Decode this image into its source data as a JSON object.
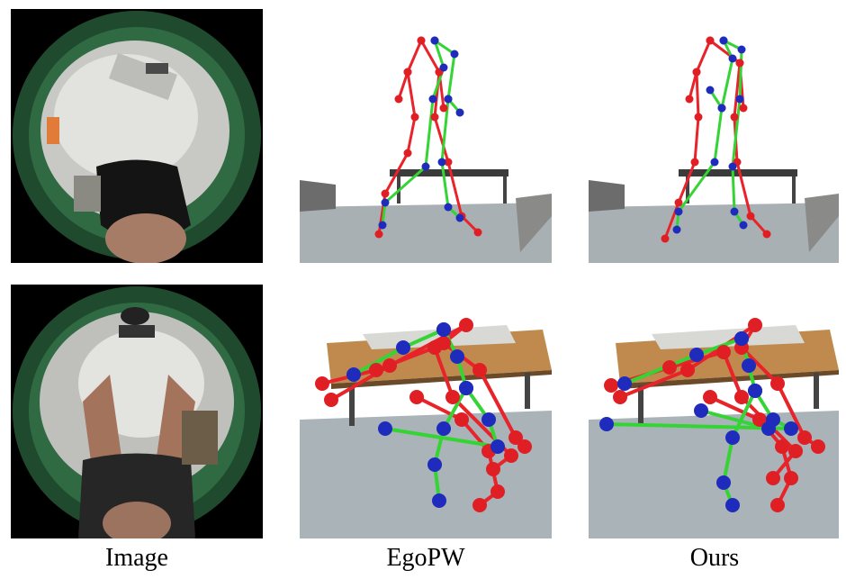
{
  "figure": {
    "columns": [
      "Image",
      "EgoPW",
      "Ours"
    ]
  },
  "legend_colors": {
    "skeleton_a": "#e8232a",
    "skeleton_b": "#35d435",
    "joint_a": "#e01f25",
    "joint_b": "#1f2bbd"
  },
  "rows": [
    {
      "image_panel": "fisheye-egocentric-photo-top-view-walking",
      "egopw_panel": "skeleton-overlay-walking",
      "ours_panel": "skeleton-overlay-walking"
    },
    {
      "image_panel": "fisheye-egocentric-photo-arms-raised",
      "egopw_panel": "skeleton-overlay-crouching",
      "ours_panel": "skeleton-overlay-crouching"
    }
  ]
}
